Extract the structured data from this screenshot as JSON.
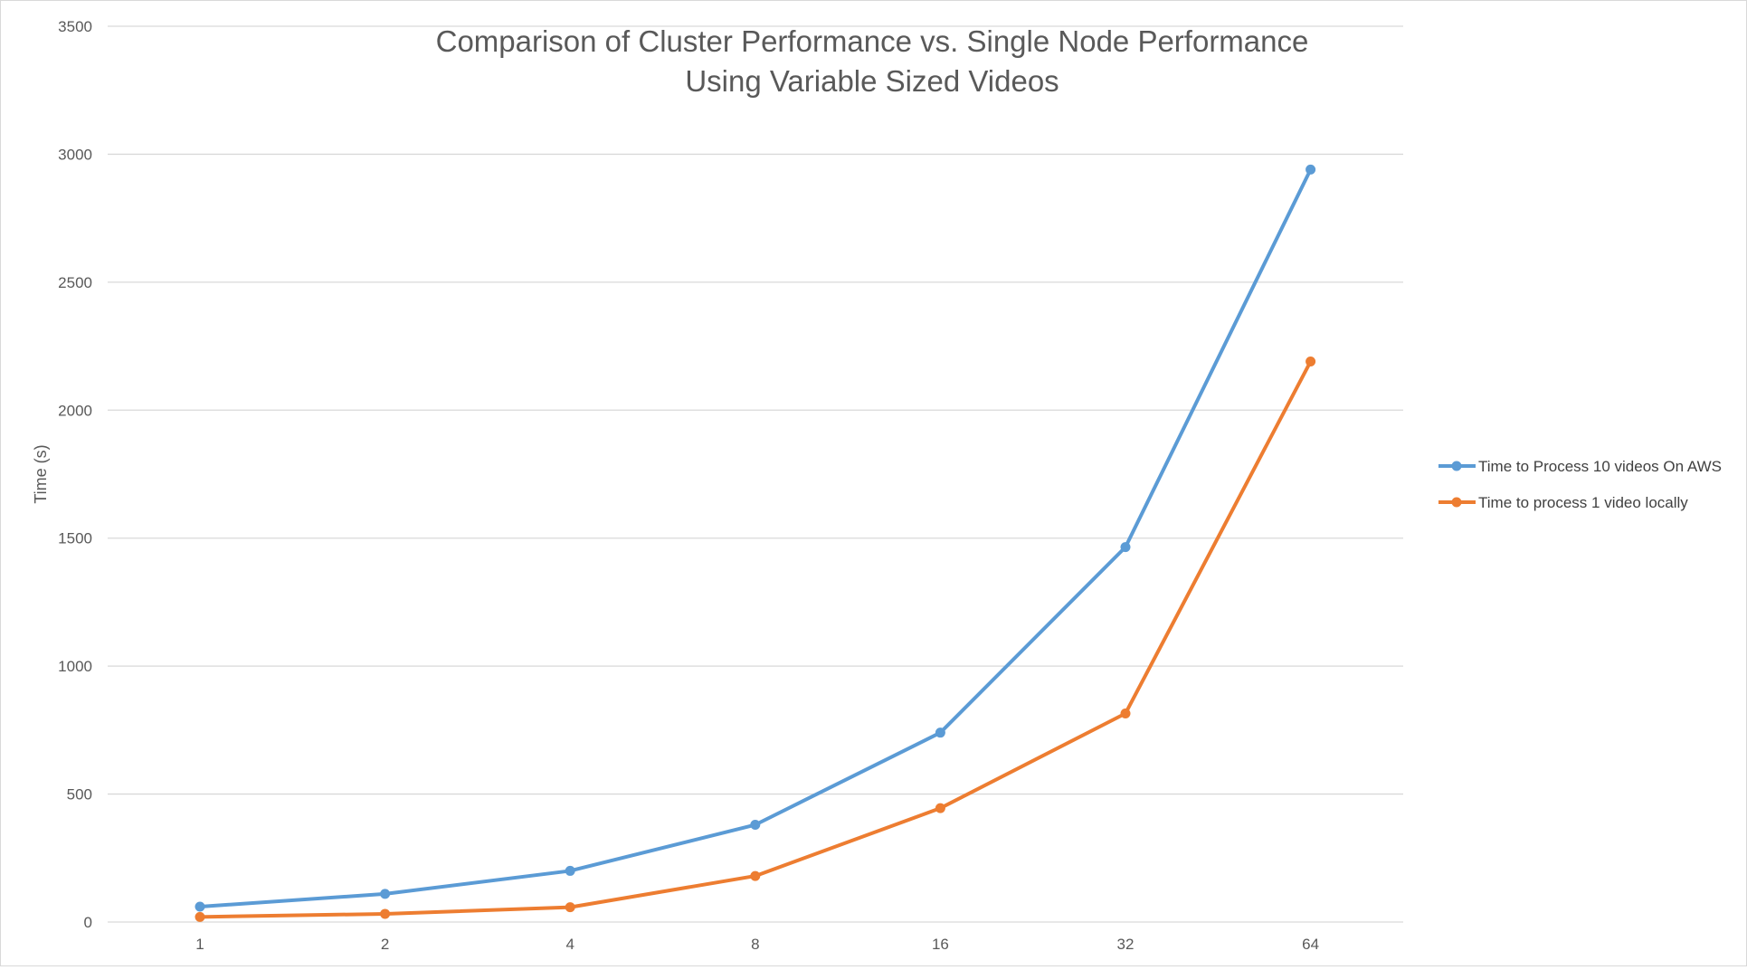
{
  "chart_data": {
    "type": "line",
    "title": "Comparison of Cluster Performance vs. Single Node Performance Using Variable Sized Videos",
    "title_lines": [
      "Comparison of Cluster Performance vs. Single Node Performance",
      "Using Variable Sized Videos"
    ],
    "xlabel": "",
    "ylabel": "Time (s)",
    "categories": [
      "1",
      "2",
      "4",
      "8",
      "16",
      "32",
      "64"
    ],
    "ylim": [
      0,
      3500
    ],
    "yticks": [
      0,
      500,
      1000,
      1500,
      2000,
      2500,
      3000,
      3500
    ],
    "grid": true,
    "legend_position": "right",
    "series": [
      {
        "name": "Time to Process 10 videos On  AWS",
        "color": "#5b9bd5",
        "values": [
          60,
          110,
          200,
          380,
          740,
          1465,
          2940
        ]
      },
      {
        "name": "Time to process 1 video locally",
        "color": "#ed7d31",
        "values": [
          20,
          32,
          58,
          180,
          445,
          815,
          2190
        ]
      }
    ]
  }
}
